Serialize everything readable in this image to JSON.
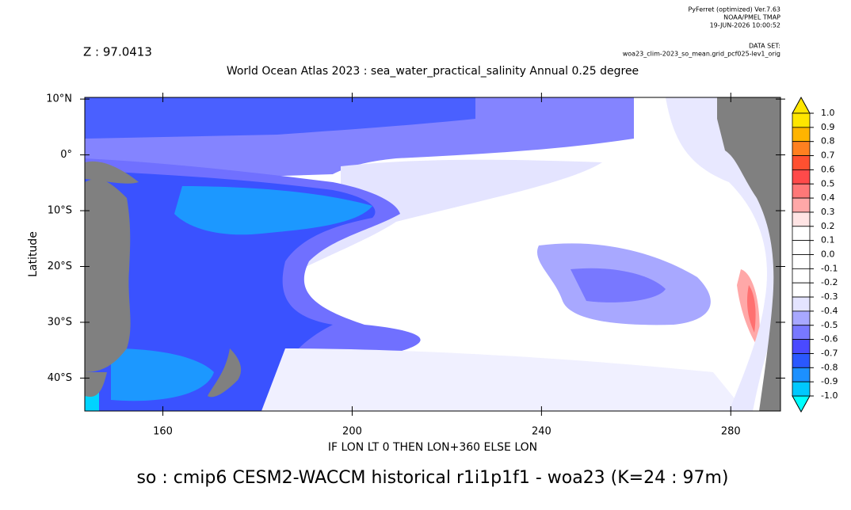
{
  "header": {
    "program": "PyFerret (optimized) Ver.7.63",
    "organization": "NOAA/PMEL TMAP",
    "timestamp": "19-JUN-2026 10:00:52",
    "dataset_label": "DATA SET:",
    "dataset": "woa23_clim-2023_so_mean.grid_pcf025-lev1_orig"
  },
  "chart_data": {
    "type": "map",
    "z_label": "Z : 97.0413",
    "title": "World Ocean Atlas 2023 : sea_water_practical_salinity Annual  0.25 degree",
    "xlabel": "IF LON LT 0 THEN LON+360 ELSE LON",
    "ylabel": "Latitude",
    "caption": "so : cmip6 CESM2-WACCM historical r1i1p1f1 - woa23  (K=24 : 97m)",
    "xlim": [
      143.5,
      290.5
    ],
    "ylim": [
      -45.9,
      10.3
    ],
    "xticks": [
      160,
      200,
      240,
      280
    ],
    "yticks": [
      {
        "value": 10,
        "label": "10°N"
      },
      {
        "value": 0,
        "label": "0°"
      },
      {
        "value": -10,
        "label": "10°S"
      },
      {
        "value": -20,
        "label": "20°S"
      },
      {
        "value": -30,
        "label": "30°S"
      },
      {
        "value": -40,
        "label": "40°S"
      }
    ],
    "colorbar": {
      "levels": [
        {
          "value": 1,
          "label": "1.0"
        },
        0.9,
        0.8,
        0.7,
        0.6,
        0.5,
        0.4,
        0.3,
        0.2,
        0.1,
        {
          "value": 0,
          "label": "0.0"
        },
        -0.1,
        -0.2,
        -0.3,
        -0.4,
        -0.5,
        -0.6,
        -0.7,
        -0.8,
        -0.9,
        {
          "value": -1,
          "label": "-1.0"
        }
      ],
      "colors": [
        "#ffe600",
        "#ffb400",
        "#ff8020",
        "#ff5030",
        "#ff4a4a",
        "#ff7878",
        "#ffa8a8",
        "#ffe4e4",
        "#ffffff",
        "#ffffff",
        "#ffffff",
        "#ffffff",
        "#ffffff",
        "#e4e4ff",
        "#a8a8ff",
        "#7878ff",
        "#4a4aff",
        "#2a58ff",
        "#1c90ff",
        "#00c8ff"
      ],
      "over_color": "#ffe600",
      "under_color": "#00ffff"
    }
  }
}
